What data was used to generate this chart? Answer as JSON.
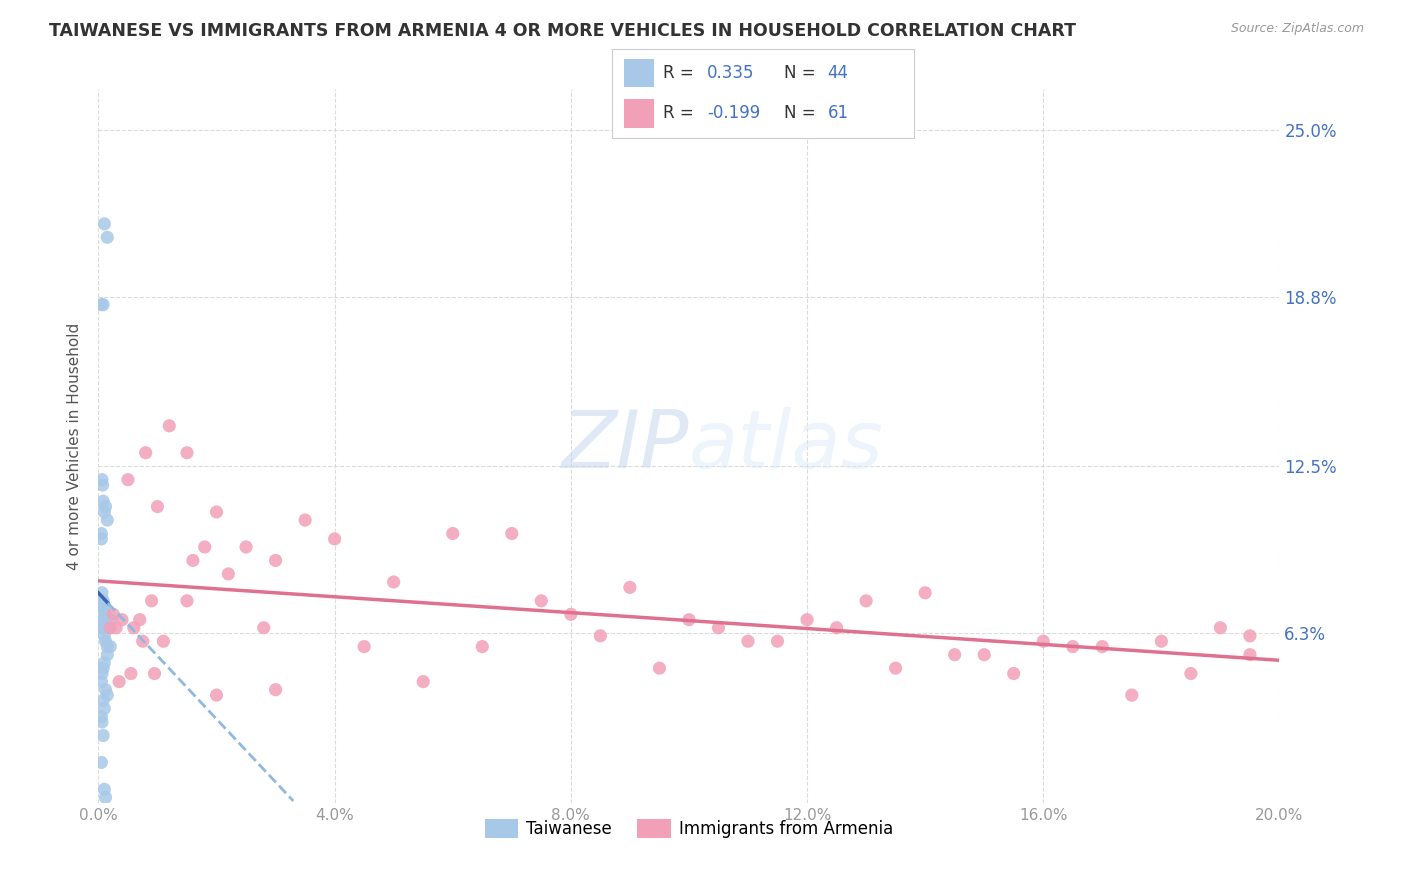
{
  "title": "TAIWANESE VS IMMIGRANTS FROM ARMENIA 4 OR MORE VEHICLES IN HOUSEHOLD CORRELATION CHART",
  "source": "Source: ZipAtlas.com",
  "ylabel": "4 or more Vehicles in Household",
  "R1": 0.335,
  "N1": 44,
  "R2": -0.199,
  "N2": 61,
  "color_taiwanese": "#a8c8e8",
  "color_armenia": "#f2a0b8",
  "color_line_taiwanese": "#3a65b0",
  "color_line_armenia": "#e07090",
  "color_line_taiwanese_ext": "#90b8e0",
  "watermark_zip": "ZIP",
  "watermark_atlas": "atlas",
  "background_color": "#ffffff",
  "x_lim": [
    0.0,
    0.2
  ],
  "y_lim": [
    0.0,
    0.265
  ],
  "y_ticks": [
    0.063,
    0.125,
    0.188,
    0.25
  ],
  "y_tick_labels": [
    "6.3%",
    "12.5%",
    "18.8%",
    "25.0%"
  ],
  "x_ticks": [
    0.0,
    0.04,
    0.08,
    0.12,
    0.16,
    0.2
  ],
  "x_tick_labels": [
    "0.0%",
    "4.0%",
    "8.0%",
    "12.0%",
    "16.0%",
    "20.0%"
  ],
  "legend_label1": "Taiwanese",
  "legend_label2": "Immigrants from Armenia",
  "tw_x": [
    0.001,
    0.0015,
    0.0005,
    0.0008,
    0.0005,
    0.0005,
    0.0006,
    0.0007,
    0.0008,
    0.001,
    0.0012,
    0.0015,
    0.0008,
    0.001,
    0.0012,
    0.0006,
    0.0007,
    0.0009,
    0.001,
    0.0012,
    0.0005,
    0.0006,
    0.0008,
    0.001,
    0.0012,
    0.0015,
    0.0018,
    0.002,
    0.0015,
    0.002,
    0.001,
    0.0008,
    0.0006,
    0.0005,
    0.0012,
    0.0015,
    0.0008,
    0.001,
    0.0005,
    0.0006,
    0.0008,
    0.0005,
    0.001,
    0.0012
  ],
  "tw_y": [
    0.215,
    0.21,
    0.185,
    0.185,
    0.1,
    0.098,
    0.12,
    0.118,
    0.112,
    0.108,
    0.11,
    0.105,
    0.075,
    0.072,
    0.07,
    0.078,
    0.075,
    0.072,
    0.068,
    0.07,
    0.065,
    0.068,
    0.065,
    0.062,
    0.06,
    0.058,
    0.065,
    0.068,
    0.055,
    0.058,
    0.052,
    0.05,
    0.048,
    0.045,
    0.042,
    0.04,
    0.038,
    0.035,
    0.032,
    0.03,
    0.025,
    0.015,
    0.005,
    0.002
  ],
  "arm_x": [
    0.002,
    0.003,
    0.005,
    0.006,
    0.008,
    0.01,
    0.012,
    0.015,
    0.018,
    0.02,
    0.025,
    0.03,
    0.035,
    0.04,
    0.05,
    0.06,
    0.07,
    0.08,
    0.09,
    0.1,
    0.11,
    0.12,
    0.13,
    0.14,
    0.15,
    0.16,
    0.17,
    0.18,
    0.19,
    0.195,
    0.004,
    0.007,
    0.009,
    0.011,
    0.016,
    0.022,
    0.028,
    0.045,
    0.055,
    0.065,
    0.075,
    0.085,
    0.095,
    0.105,
    0.115,
    0.125,
    0.135,
    0.145,
    0.155,
    0.165,
    0.175,
    0.185,
    0.195,
    0.0025,
    0.0035,
    0.0055,
    0.0075,
    0.0095,
    0.015,
    0.02,
    0.03
  ],
  "arm_y": [
    0.065,
    0.065,
    0.12,
    0.065,
    0.13,
    0.11,
    0.14,
    0.13,
    0.095,
    0.108,
    0.095,
    0.09,
    0.105,
    0.098,
    0.082,
    0.1,
    0.1,
    0.07,
    0.08,
    0.068,
    0.06,
    0.068,
    0.075,
    0.078,
    0.055,
    0.06,
    0.058,
    0.06,
    0.065,
    0.062,
    0.068,
    0.068,
    0.075,
    0.06,
    0.09,
    0.085,
    0.065,
    0.058,
    0.045,
    0.058,
    0.075,
    0.062,
    0.05,
    0.065,
    0.06,
    0.065,
    0.05,
    0.055,
    0.048,
    0.058,
    0.04,
    0.048,
    0.055,
    0.07,
    0.045,
    0.048,
    0.06,
    0.048,
    0.075,
    0.04,
    0.042
  ]
}
